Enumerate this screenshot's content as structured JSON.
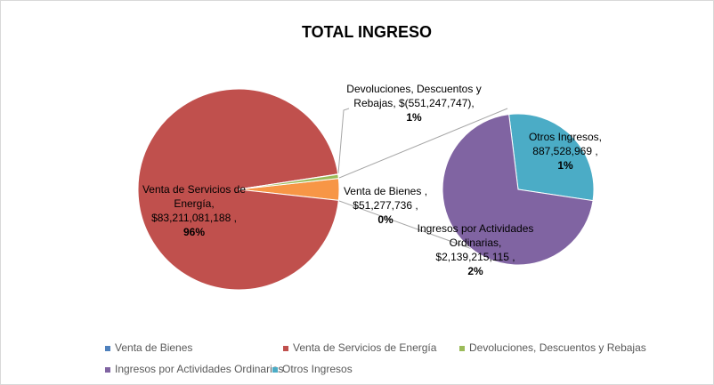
{
  "chart_data": {
    "type": "pie-of-pie",
    "title": "TOTAL INGRESO",
    "categories": [
      "Venta de Bienes",
      "Venta de Servicios de Energía",
      "Devoluciones, Descuentos y Rebajas",
      "Ingresos por Actividades Ordinarias",
      "Otros Ingresos"
    ],
    "values": [
      51277736,
      83211081188,
      -551247747,
      2139215115,
      887528969
    ],
    "value_labels": [
      "$51,277,736 ,",
      "$83,211,081,188 ,",
      "$(551,247,747),",
      "$2,139,215,115 ,",
      "887,528,969 ,"
    ],
    "percent_labels": [
      "0%",
      "96%",
      "1%",
      "2%",
      "1%"
    ],
    "colors": [
      "#4f81bd",
      "#c0504d",
      "#9bbb59",
      "#8064a2",
      "#4bacc6"
    ],
    "secondary": [
      3,
      4
    ],
    "other_color": "#f79646",
    "legend": "bottom"
  }
}
